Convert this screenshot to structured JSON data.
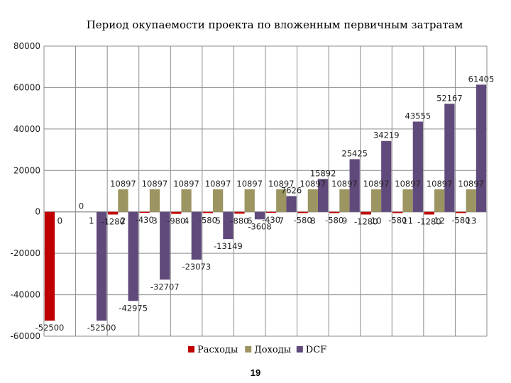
{
  "page_number": "19",
  "chart_data": {
    "type": "bar",
    "title": "Период окупаемости проекта по вложенным первичным затратам",
    "categories": [
      "0",
      "1",
      "2",
      "3",
      "4",
      "5",
      "6",
      "7",
      "8",
      "9",
      "10",
      "11",
      "12",
      "13"
    ],
    "ylim": [
      -60000,
      80000
    ],
    "yticks": [
      80000,
      60000,
      40000,
      20000,
      0,
      -20000,
      -40000,
      -60000
    ],
    "grid": true,
    "legend_position": "bottom",
    "series": [
      {
        "name": "Расходы",
        "color": "#c00000",
        "values": [
          -52500,
          0,
          -1280,
          -430,
          -980,
          -580,
          -880,
          -430,
          -580,
          -580,
          -1280,
          -580,
          -1280,
          -580
        ],
        "labels": [
          "-52500",
          "0",
          "-1280",
          "-430",
          "-980",
          "-580",
          "-880",
          "-430",
          "-580",
          "-580",
          "-1280",
          "-580",
          "-1280",
          "-580"
        ]
      },
      {
        "name": "Доходы",
        "color": "#9c9461",
        "values": [
          0,
          0,
          10897,
          10897,
          10897,
          10897,
          10897,
          10897,
          10897,
          10897,
          10897,
          10897,
          10897,
          10897
        ],
        "labels": [
          "",
          "",
          "10897",
          "10897",
          "10897",
          "10897",
          "10897",
          "10897",
          "10897",
          "10897",
          "10897",
          "10897",
          "10897",
          "10897"
        ]
      },
      {
        "name": "DCF",
        "color": "#604a7b",
        "values": [
          0,
          -52500,
          -42975,
          -32707,
          -23073,
          -13149,
          -3608,
          7626,
          15892,
          25425,
          34219,
          43555,
          52167,
          61405
        ],
        "labels": [
          "",
          "-52500",
          "-42975",
          "-32707",
          "-23073",
          "-13149",
          "-3608",
          "7626",
          "15892",
          "25425",
          "34219",
          "43555",
          "52167",
          "61405"
        ]
      }
    ]
  }
}
